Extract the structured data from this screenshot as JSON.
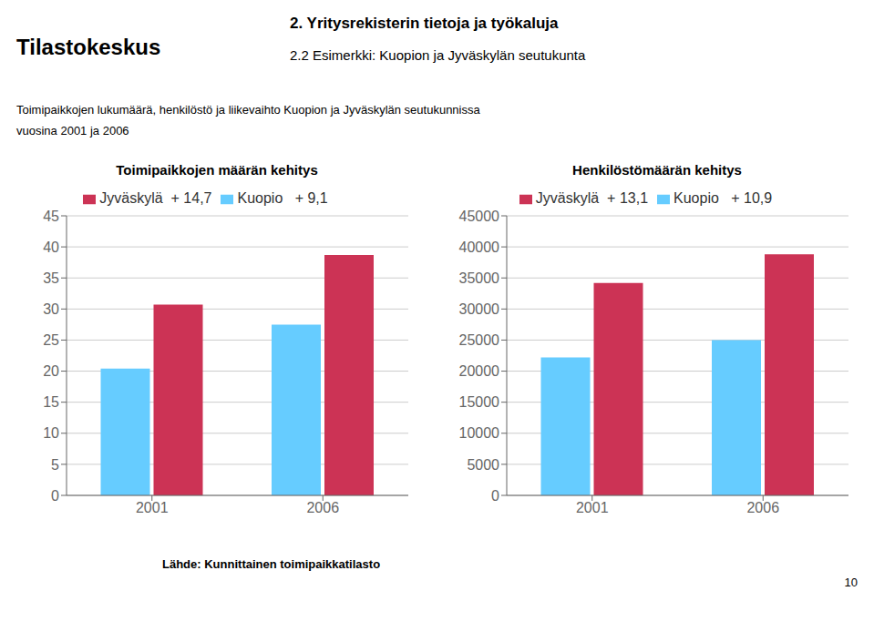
{
  "title": "2. Yritysrekisterin tietoja ja työkaluja",
  "subtitle": "2.2 Esimerkki: Kuopion ja Jyväskylän seutukunta",
  "annotations": [
    "Tilastokeskus",
    "Toimipaikkojen lukumäärä, henkilöstö ja liikevaihto Kuopion ja Jyväskylän seutukunnissa",
    "vuosina 2001 ja 2006",
    "Lähde: Kunnittainen toimipaikkatilasto",
    "10"
  ],
  "chart_data": [
    {
      "type": "bar",
      "title": "Toimipaikkojen määrän kehitys",
      "categories": [
        "2001",
        "2006"
      ],
      "series": [
        {
          "name": "Kuopio   + 9,1",
          "color": "#66CCFF",
          "values": [
            20.4,
            27.5
          ]
        },
        {
          "name": "Jyväskylä  + 14,7",
          "color": "#CC3355",
          "values": [
            30.7,
            38.7
          ]
        }
      ],
      "ylim": [
        0,
        45
      ],
      "yticks": [
        0,
        5,
        10,
        15,
        20,
        25,
        30,
        35,
        40,
        45
      ],
      "grid": true,
      "legend": "top"
    },
    {
      "type": "bar",
      "title": "Henkilöstömäärän kehitys",
      "categories": [
        "2001",
        "2006"
      ],
      "series": [
        {
          "name": "Kuopio   + 10,9",
          "color": "#66CCFF",
          "values": [
            22200,
            25000
          ]
        },
        {
          "name": "Jyväskylä  + 13,1",
          "color": "#CC3355",
          "values": [
            34200,
            38800
          ]
        }
      ],
      "ylim": [
        0,
        45000
      ],
      "yticks": [
        0,
        5000,
        10000,
        15000,
        20000,
        25000,
        30000,
        35000,
        40000,
        45000
      ],
      "grid": true,
      "legend": "top"
    }
  ]
}
